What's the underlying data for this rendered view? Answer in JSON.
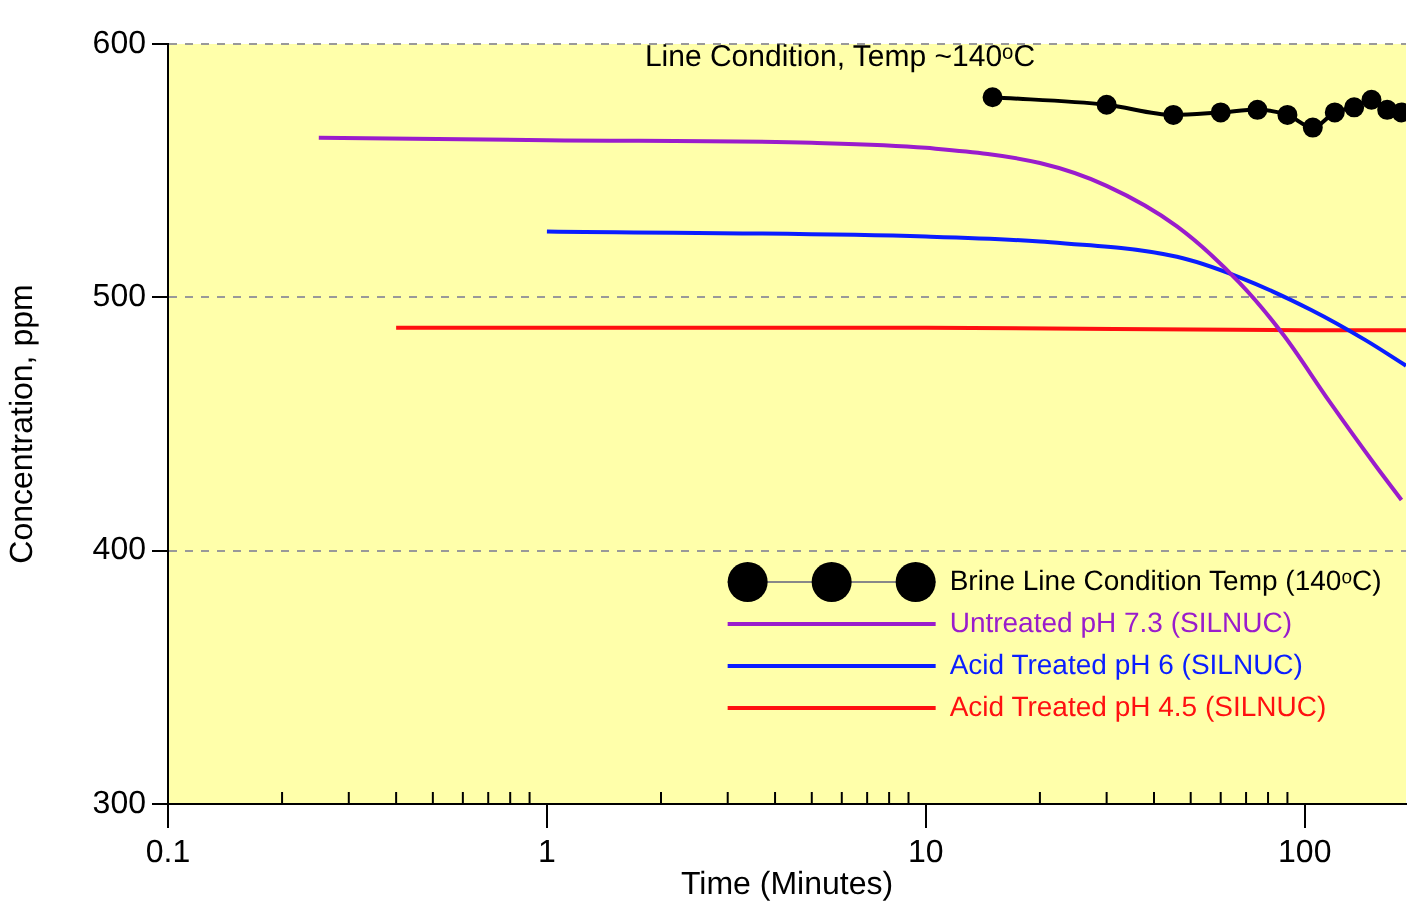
{
  "chart_data": {
    "type": "line",
    "xlabel": "Time (Minutes)",
    "ylabel": "Concentration, ppm",
    "log": "x",
    "xlim": [
      0.1,
      185
    ],
    "xticks": [
      0.1,
      1,
      10,
      100
    ],
    "ylim": [
      300,
      600
    ],
    "yticks": [
      300,
      400,
      500,
      600
    ],
    "grid": "y",
    "line_style": "solid",
    "legend": "bottom right",
    "annotations": [
      "Line Condition, Temp ~140ᵒC"
    ],
    "series": [
      {
        "name": "Brine Line Condition Temp (140ᵒC)",
        "color": "#000000",
        "marker": "circle",
        "x": [
          15,
          30,
          45,
          60,
          75,
          90,
          105,
          120,
          135,
          150,
          165,
          180
        ],
        "values": [
          579,
          576,
          572,
          573,
          574,
          572,
          567,
          573,
          575,
          578,
          574,
          573
        ]
      },
      {
        "name": "Untreated pH 7.3 (SILNUC)",
        "color": "#9a1ccc",
        "marker": "none",
        "x": [
          0.25,
          1,
          5,
          10,
          20,
          30,
          46,
          67,
          88,
          116,
          153,
          180
        ],
        "values": [
          563,
          562,
          561,
          559,
          553,
          544,
          528,
          506,
          485,
          459,
          434,
          420
        ]
      },
      {
        "name": "Acid Treated pH 6 (SILNUC)",
        "color": "#0a1eff",
        "marker": "none",
        "x": [
          1,
          10,
          20,
          46,
          67,
          104,
          145,
          185
        ],
        "values": [
          526,
          524,
          522,
          516,
          508,
          495,
          483,
          473
        ]
      },
      {
        "name": "Acid Treated pH 4.5 (SILNUC)",
        "color": "#ff1010",
        "marker": "none",
        "x": [
          0.4,
          10,
          100,
          185
        ],
        "values": [
          488,
          488,
          487,
          487
        ]
      }
    ]
  }
}
